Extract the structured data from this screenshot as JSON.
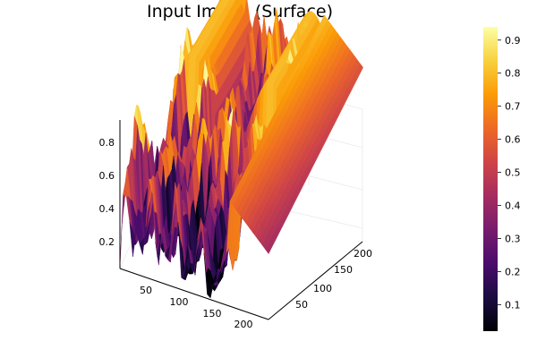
{
  "chart_data": {
    "type": "surface",
    "title": "Input Image (Surface)",
    "xlabel": "",
    "ylabel": "",
    "zlabel": "",
    "x_ticks": [
      "50",
      "100",
      "150",
      "200"
    ],
    "y_ticks": [
      "50",
      "100",
      "150",
      "200"
    ],
    "z_ticks": [
      "0.2",
      "0.4",
      "0.6",
      "0.8"
    ],
    "xlim": [
      1,
      220
    ],
    "ylim": [
      1,
      220
    ],
    "zlim": [
      0.02,
      0.93
    ],
    "colorbar": {
      "colormap": "inferno",
      "range": [
        0.02,
        0.94
      ],
      "ticks": [
        "0.1",
        "0.2",
        "0.3",
        "0.4",
        "0.5",
        "0.6",
        "0.7",
        "0.8",
        "0.9"
      ],
      "tick_values": [
        0.1,
        0.2,
        0.3,
        0.4,
        0.5,
        0.6,
        0.7,
        0.8,
        0.9
      ]
    },
    "grid": true,
    "legend": "none",
    "colors": [
      "#000004",
      "#1b0c41",
      "#4a0c6b",
      "#781c6d",
      "#a52c60",
      "#cf4446",
      "#ed6925",
      "#fb9b06",
      "#f7d13d",
      "#fcffa4"
    ]
  }
}
